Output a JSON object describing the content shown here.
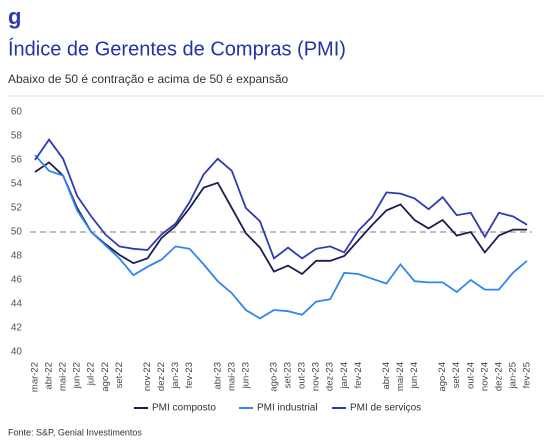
{
  "chart_data": {
    "type": "line",
    "title": "Índice de Gerentes de Compras (PMI)",
    "subtitle": "Abaixo de 50 é contração e acima de 50 é expansão",
    "source": "Fonte: S&P, Genial Investimentos",
    "categories": [
      "mar-22",
      "abr-22",
      "mai-22",
      "jun-22",
      "jul-22",
      "ago-22",
      "set-22",
      null,
      "nov-22",
      "dez-22",
      "jan-23",
      "fev-23",
      null,
      "abr-23",
      "mai-23",
      "jun-23",
      null,
      "ago-23",
      "set-23",
      "out-23",
      "nov-23",
      "dez-23",
      "jan-24",
      "fev-24",
      null,
      "abr-24",
      "mai-24",
      "jun-24",
      null,
      "ago-24",
      "set-24",
      "out-24",
      "nov-24",
      "dez-24",
      "jan-25",
      "fev-25"
    ],
    "series": [
      {
        "name": "PMI composto",
        "color": "#1b1f4f",
        "values": [
          55,
          55.8,
          54.7,
          52,
          50,
          49,
          48.1,
          47.4,
          47.8,
          49.5,
          50.5,
          52,
          53.7,
          54.1,
          52,
          49.9,
          48.7,
          46.7,
          47.2,
          46.5,
          47.6,
          47.6,
          48,
          49.3,
          50.6,
          51.8,
          52.3,
          51,
          50.3,
          51,
          49.7,
          50,
          48.3,
          49.7,
          50.2,
          50.2
        ]
      },
      {
        "name": "PMI industrial",
        "color": "#2f86ee",
        "values": [
          56.4,
          55.1,
          54.7,
          51.8,
          50,
          48.9,
          47.8,
          46.4,
          47.1,
          47.7,
          48.8,
          48.6,
          47.3,
          45.9,
          44.9,
          43.5,
          42.8,
          43.5,
          43.4,
          43.1,
          44.2,
          44.4,
          46.6,
          46.5,
          46.1,
          45.7,
          47.3,
          45.9,
          45.8,
          45.8,
          45,
          46,
          45.2,
          45.2,
          46.6,
          47.6
        ]
      },
      {
        "name": "PMI de serviços",
        "color": "#2d3cae",
        "values": [
          56,
          57.7,
          56.1,
          53,
          51.3,
          49.8,
          48.8,
          48.6,
          48.5,
          49.8,
          50.7,
          52.5,
          54.8,
          56.1,
          55.1,
          52,
          50.9,
          47.8,
          48.7,
          47.8,
          48.6,
          48.8,
          48.3,
          50.1,
          51.3,
          53.3,
          53.2,
          52.8,
          51.9,
          52.9,
          51.4,
          51.6,
          49.6,
          51.6,
          51.3,
          50.6
        ]
      }
    ],
    "reference_line": 50,
    "ylim": [
      40,
      60
    ],
    "yticks": [
      40,
      42,
      44,
      46,
      48,
      50,
      52,
      54,
      56,
      58,
      60
    ],
    "legend": "bottom"
  }
}
